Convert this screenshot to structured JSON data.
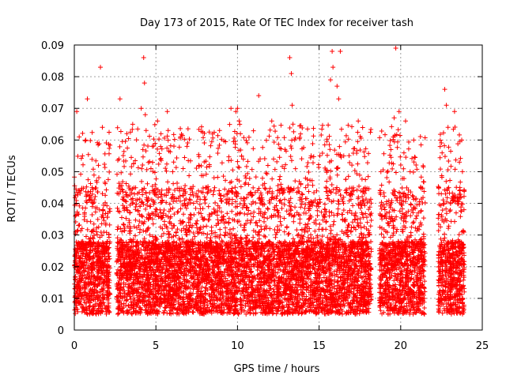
{
  "chart_data": {
    "type": "scatter",
    "title": "Day 173 of 2015, Rate Of TEC Index for receiver tash",
    "xlabel": "GPS time / hours",
    "ylabel": "ROTI / TECUs",
    "xlim": [
      0,
      25
    ],
    "ylim": [
      0,
      0.09
    ],
    "x_ticks": [
      "0",
      "5",
      "10",
      "15",
      "20",
      "25"
    ],
    "y_ticks": [
      "0",
      "0.01",
      "0.02",
      "0.03",
      "0.04",
      "0.05",
      "0.06",
      "0.07",
      "0.08",
      "0.09"
    ],
    "grid": true,
    "marker": "+",
    "color": "#ff0000",
    "coverage_hours": [
      [
        0.0,
        2.2
      ],
      [
        2.6,
        18.2
      ],
      [
        18.7,
        21.5
      ],
      [
        22.3,
        23.9
      ]
    ],
    "series": [
      {
        "x": [
          0.15,
          0.3,
          0.5,
          0.8,
          1.6,
          0.7,
          2.8,
          4.1,
          4.25,
          4.3,
          4.35,
          4.4,
          4.2,
          5.1,
          5.7,
          5.75,
          6.5,
          8.9,
          9.6,
          9.9,
          10.0,
          10.1,
          11.3,
          12.1,
          13.2,
          13.3,
          13.35,
          13.4,
          15.7,
          15.8,
          15.85,
          16.1,
          16.2,
          16.3,
          17.4,
          19.6,
          19.7,
          19.9,
          20.3,
          20.8,
          22.7,
          22.8,
          22.9,
          23.3,
          23.6
        ],
        "y": [
          0.069,
          0.061,
          0.055,
          0.073,
          0.083,
          0.06,
          0.073,
          0.07,
          0.086,
          0.078,
          0.068,
          0.063,
          0.057,
          0.066,
          0.069,
          0.063,
          0.061,
          0.063,
          0.07,
          0.069,
          0.07,
          0.066,
          0.074,
          0.066,
          0.086,
          0.081,
          0.071,
          0.065,
          0.079,
          0.088,
          0.083,
          0.077,
          0.073,
          0.088,
          0.066,
          0.067,
          0.089,
          0.069,
          0.066,
          0.06,
          0.076,
          0.071,
          0.064,
          0.069,
          0.053
        ]
      }
    ]
  }
}
